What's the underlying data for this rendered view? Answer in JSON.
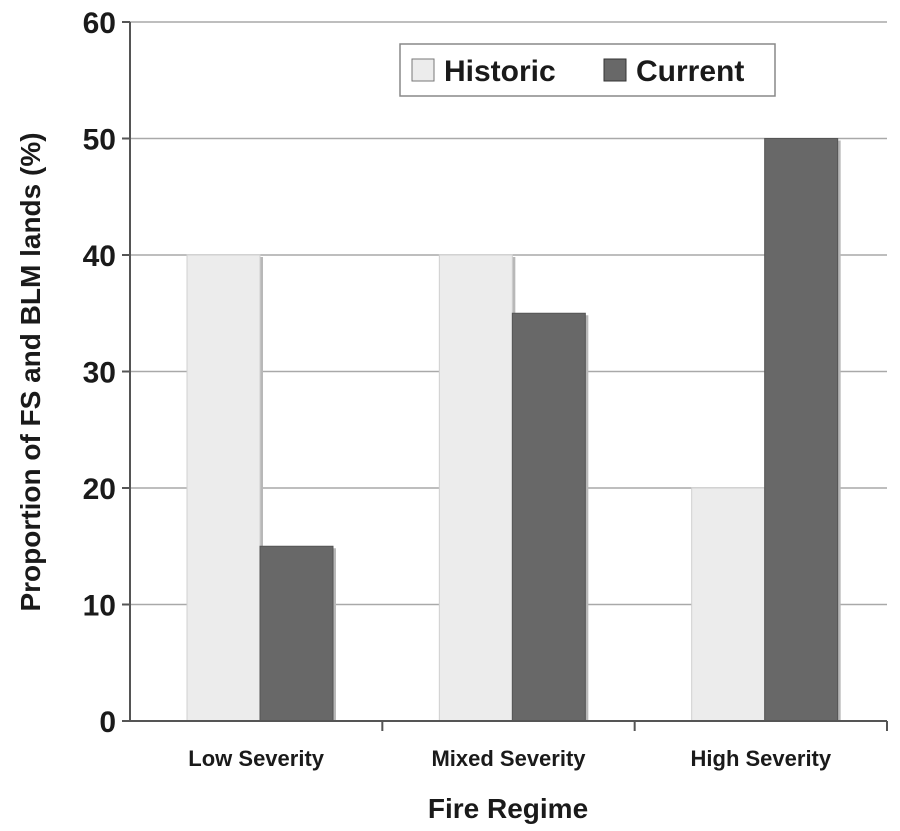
{
  "chart_data": {
    "type": "bar",
    "title": "",
    "xlabel": "Fire Regime",
    "ylabel": "Proportion of FS and BLM lands (%)",
    "categories": [
      "Low Severity",
      "Mixed Severity",
      "High Severity"
    ],
    "series": [
      {
        "name": "Historic",
        "values": [
          40,
          40,
          20
        ],
        "color": "#ececec"
      },
      {
        "name": "Current",
        "values": [
          15,
          35,
          50
        ],
        "color": "#686868"
      }
    ],
    "ylim": [
      0,
      60
    ],
    "yticks": [
      0,
      10,
      20,
      30,
      40,
      50,
      60
    ],
    "grid": true,
    "legend_position": "top-right"
  }
}
